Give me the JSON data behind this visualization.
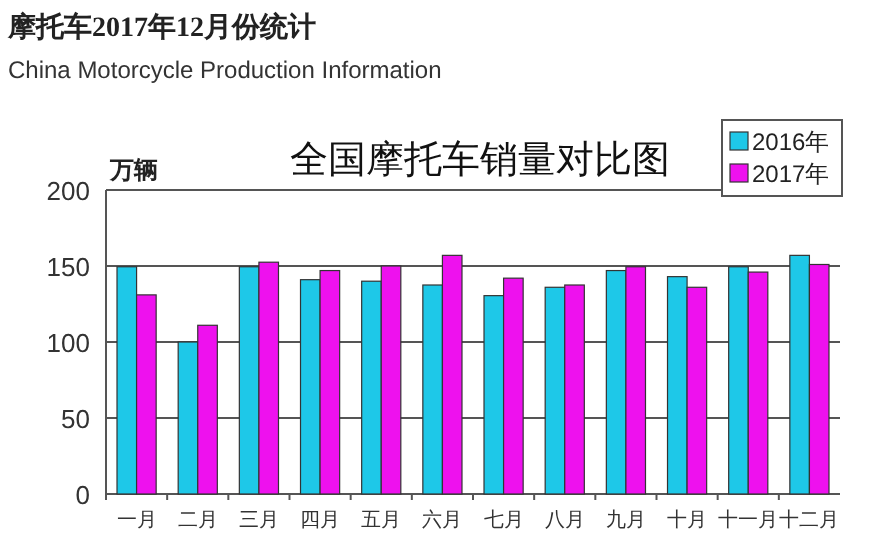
{
  "chart_data": {
    "type": "bar",
    "title": "全国摩托车销量对比图",
    "ylabel": "万辆",
    "annotations": [
      "摩托车2017年12月份统计",
      "China Motorcycle Production Information"
    ],
    "categories": [
      "一月",
      "二月",
      "三月",
      "四月",
      "五月",
      "六月",
      "七月",
      "八月",
      "九月",
      "十月",
      "十一月",
      "十二月"
    ],
    "series": [
      {
        "name": "2016年",
        "color": "#1ec8e8",
        "values": [
          149.5,
          100,
          149.5,
          141,
          140,
          137.5,
          130.5,
          136,
          147,
          143,
          149.5,
          157
        ]
      },
      {
        "name": "2017年",
        "color": "#ee11ee",
        "values": [
          131,
          111,
          152.5,
          147,
          150,
          157,
          142,
          137.5,
          149.5,
          136,
          146,
          151
        ]
      }
    ],
    "ylim": [
      0,
      200
    ],
    "yticks": [
      0,
      50,
      100,
      150,
      200
    ],
    "grid": "y",
    "legend": "top right"
  }
}
